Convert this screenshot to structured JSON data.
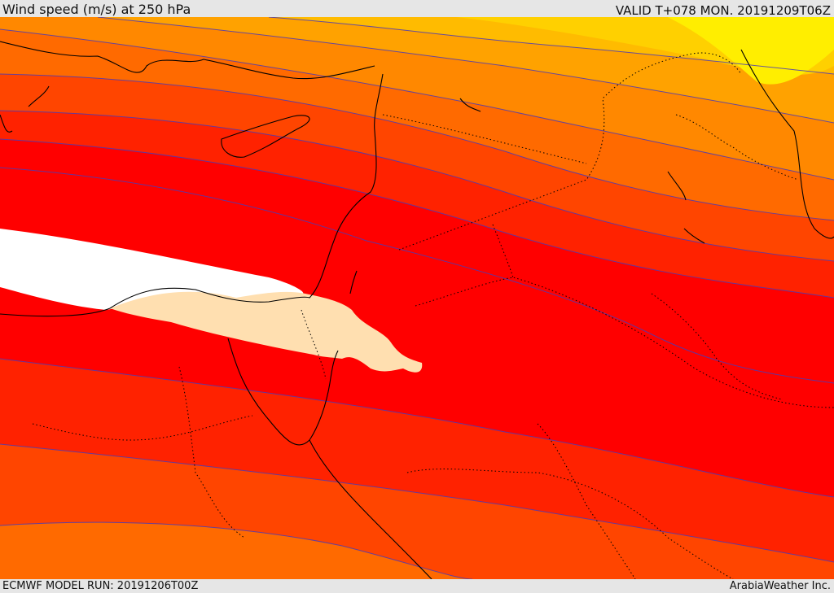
{
  "header": {
    "title": "Wind speed (m/s) at 250 hPa",
    "valid": "VALID T+078 MON. 20191209T06Z"
  },
  "footer": {
    "model_run": "ECMWF MODEL RUN: 20191206T00Z",
    "credit": "ArabiaWeather Inc."
  },
  "map": {
    "field": "wind-speed-250hPa",
    "palette": {
      "peak_white": "#ffffff",
      "peak_wheat": "#ffdfb0",
      "red": "#ff0000",
      "red_orange": "#ff2200",
      "orange_red": "#ff4500",
      "dark_orange": "#ff6a00",
      "orange": "#ff8800",
      "light_orange": "#ffa200",
      "amber": "#ffbb00",
      "gold": "#ffd000",
      "yellow": "#ffee00"
    },
    "contour_color": "#4b3bb5",
    "coastline_color": "#000000",
    "border_style": "dotted"
  }
}
